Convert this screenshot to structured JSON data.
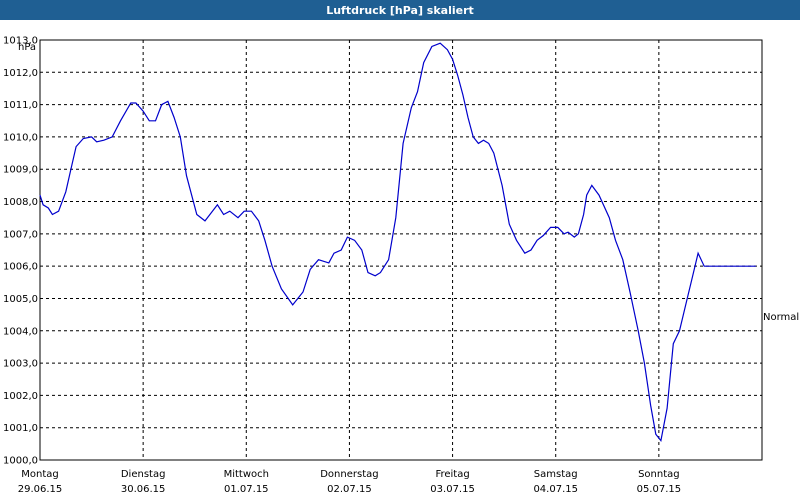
{
  "window": {
    "title": "Luftdruck [hPa] skaliert"
  },
  "chart_data": {
    "type": "line",
    "title": "Luftdruck [hPa] skaliert",
    "ylabel": "hPa",
    "xlabel": "",
    "ylim": [
      1000,
      1013
    ],
    "xlim": [
      0,
      7
    ],
    "yticks": [
      "1000,0",
      "1001,0",
      "1002,0",
      "1003,0",
      "1004,0",
      "1005,0",
      "1006,0",
      "1007,0",
      "1008,0",
      "1009,0",
      "1010,0",
      "1011,0",
      "1012,0",
      "1013,0"
    ],
    "xticks": [
      {
        "day": "Montag",
        "date": "29.06.15"
      },
      {
        "day": "Dienstag",
        "date": "30.06.15"
      },
      {
        "day": "Mittwoch",
        "date": "01.07.15"
      },
      {
        "day": "Donnerstag",
        "date": "02.07.15"
      },
      {
        "day": "Freitag",
        "date": "03.07.15"
      },
      {
        "day": "Samstag",
        "date": "04.07.15"
      },
      {
        "day": "Sonntag",
        "date": "05.07.15"
      }
    ],
    "reference_label": "Normal",
    "reference_value": 1005.1,
    "grid": true,
    "line_color": "#0000cc",
    "series": [
      {
        "x": [
          0,
          0.03,
          0.08,
          0.12,
          0.18,
          0.25,
          0.3,
          0.35,
          0.42,
          0.5,
          0.55,
          0.62,
          0.7,
          0.78,
          0.88,
          0.93,
          1.0,
          1.06,
          1.12,
          1.18,
          1.24,
          1.3,
          1.36,
          1.42,
          1.52,
          1.6,
          1.72,
          1.78,
          1.84,
          1.92,
          1.98,
          2.05,
          2.12,
          2.18,
          2.25,
          2.34,
          2.45,
          2.55,
          2.62,
          2.7,
          2.8,
          2.85,
          2.92,
          2.98,
          3.05,
          3.12,
          3.18,
          3.25,
          3.3,
          3.38,
          3.45,
          3.52,
          3.6,
          3.66,
          3.72,
          3.8,
          3.88,
          3.95,
          4.0,
          4.05,
          4.1,
          4.15,
          4.2,
          4.25,
          4.3,
          4.35,
          4.4,
          4.48,
          4.55,
          4.62,
          4.7,
          4.76,
          4.82,
          4.88,
          4.95,
          5.02,
          5.08,
          5.12,
          5.18,
          5.22,
          5.27,
          5.3,
          5.35,
          5.42,
          5.52,
          5.58,
          5.65,
          5.72,
          5.8,
          5.86,
          5.92,
          5.97,
          6.02,
          6.08,
          6.14,
          6.2,
          6.26,
          6.32,
          6.38,
          6.44,
          6.5,
          6.56,
          6.62,
          6.67,
          6.72,
          6.78,
          6.82,
          6.88,
          6.94,
          7.0
        ],
        "y": [
          1008.2,
          1007.9,
          1007.8,
          1007.6,
          1007.7,
          1008.3,
          1009.0,
          1009.7,
          1009.95,
          1010.0,
          1009.85,
          1009.9,
          1010.0,
          1010.5,
          1011.05,
          1011.05,
          1010.8,
          1010.5,
          1010.5,
          1011.0,
          1011.1,
          1010.6,
          1010.0,
          1008.8,
          1007.6,
          1007.4,
          1007.9,
          1007.6,
          1007.7,
          1007.5,
          1007.7,
          1007.7,
          1007.4,
          1006.8,
          1006.0,
          1005.3,
          1004.8,
          1005.2,
          1005.9,
          1006.2,
          1006.1,
          1006.4,
          1006.5,
          1006.9,
          1006.8,
          1006.5,
          1005.8,
          1005.7,
          1005.8,
          1006.2,
          1007.5,
          1009.8,
          1010.9,
          1011.4,
          1012.3,
          1012.8,
          1012.9,
          1012.7,
          1012.4,
          1011.9,
          1011.3,
          1010.6,
          1010.0,
          1009.8,
          1009.9,
          1009.8,
          1009.5,
          1008.5,
          1007.3,
          1006.8,
          1006.4,
          1006.5,
          1006.8,
          1006.95,
          1007.2,
          1007.2,
          1007.0,
          1007.05,
          1006.9,
          1007.0,
          1007.6,
          1008.2,
          1008.5,
          1008.2,
          1007.5,
          1006.8,
          1006.2,
          1005.2,
          1004.0,
          1003.0,
          1001.7,
          1000.8,
          1000.6,
          1001.6,
          1003.6,
          1004.0,
          1004.8,
          1005.6,
          1006.4,
          1006.0,
          1006.0,
          1006.0,
          1006.0,
          1006.0,
          1006.0,
          1006.0,
          1006.0,
          1006.0,
          1006.0,
          1006.0
        ]
      }
    ]
  }
}
